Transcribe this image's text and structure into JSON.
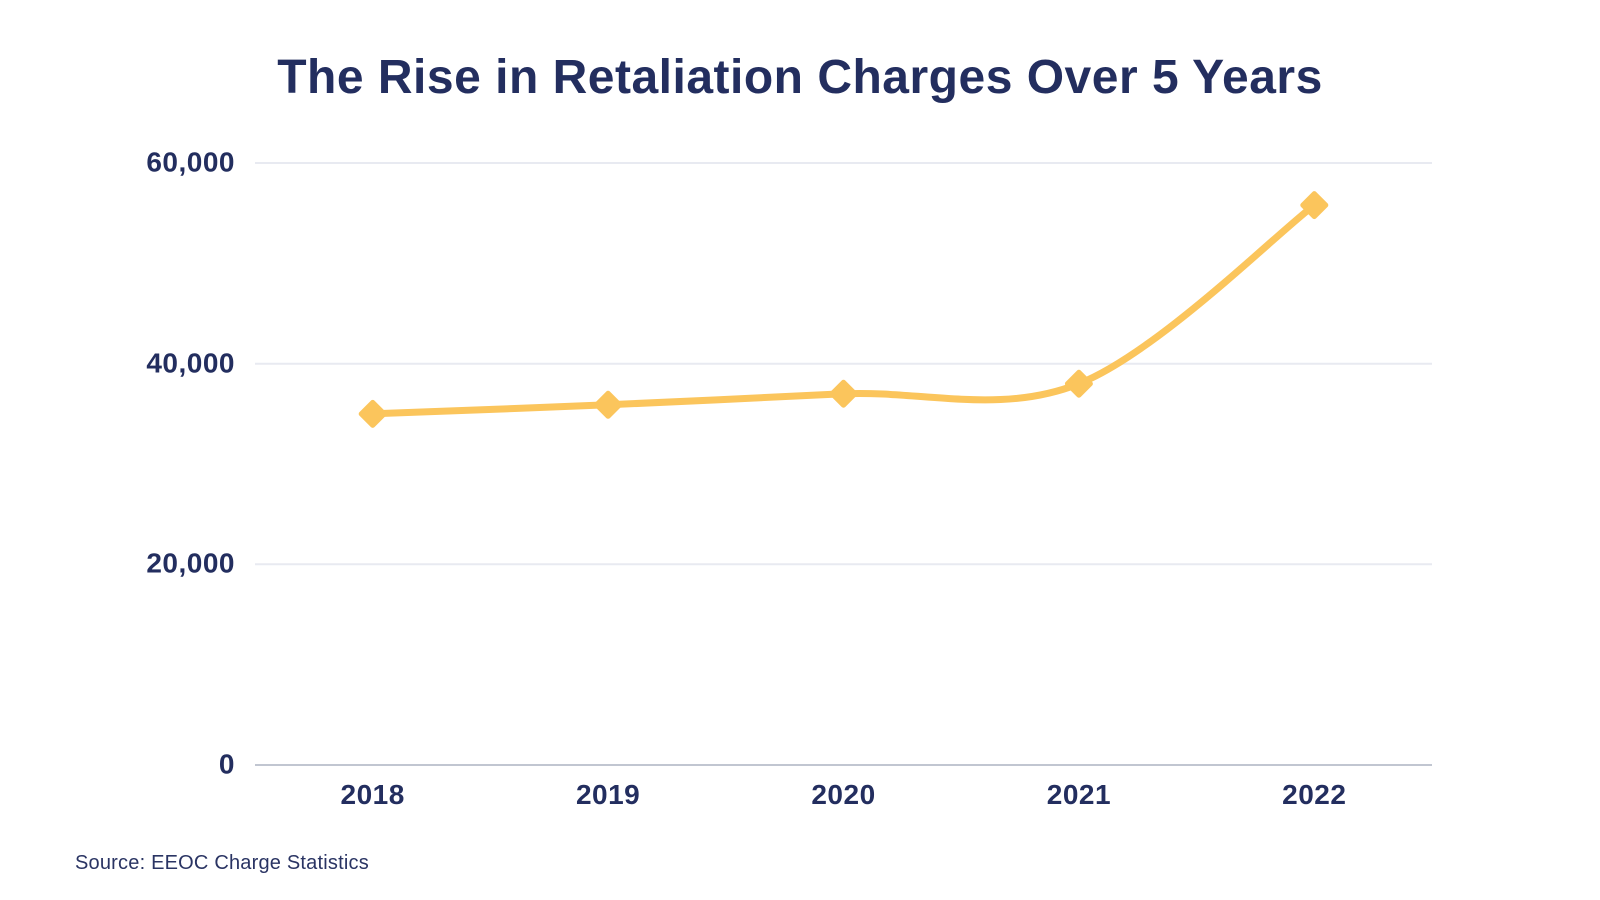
{
  "chart_data": {
    "type": "line",
    "title": "The Rise in Retaliation Charges Over 5 Years",
    "source": "Source: EEOC Charge Statistics",
    "categories": [
      "2018",
      "2019",
      "2020",
      "2021",
      "2022"
    ],
    "series": [
      {
        "values": [
          35000,
          35900,
          37000,
          38000,
          55800
        ]
      }
    ],
    "xlabel": "",
    "ylabel": "",
    "ylim": [
      0,
      60000
    ],
    "yticks": [
      0,
      20000,
      40000,
      60000
    ],
    "ytick_labels": [
      "0",
      "20,000",
      "40,000",
      "60,000"
    ],
    "grid": true,
    "legend_position": "none",
    "marker": "diamond",
    "line_smoothing": "spline",
    "colors": {
      "line": "#FBC55C",
      "marker": "#FBC55C",
      "title": "#232E5F",
      "axis_labels": "#232E5F",
      "gridline": "#E8EAF1",
      "zero_line": "#C1C6D1",
      "background": "#FFFFFF"
    }
  }
}
